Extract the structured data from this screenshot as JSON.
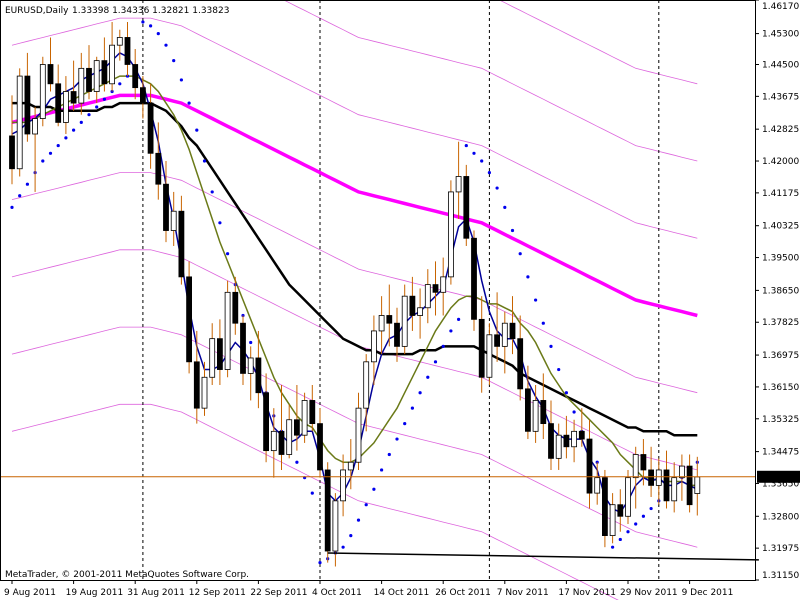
{
  "header": {
    "symbol": "EURUSD,Daily",
    "ohlc": "1.33398 1.34336 1.32821 1.33823"
  },
  "footer": {
    "copyright": "MetaTrader, © 2001-2011 MetaQuotes Software Corp."
  },
  "colors": {
    "bull": "#ffffff",
    "bear": "#000000",
    "wick": "#c86400",
    "fast_ma": "#000099",
    "mid_ma": "#6b7a18",
    "slow_ma": "#000000",
    "long_ma": "#ff00ff",
    "bands": "#dd66dd",
    "sar": "#0000ee",
    "bid_line": "#c86400",
    "support": "#000000"
  },
  "chart_data": {
    "type": "candlestick",
    "symbol": "EURUSD",
    "timeframe": "Daily",
    "ylim": [
      1.3115,
      1.4617
    ],
    "y_ticks": [
      "1.46170",
      "1.45300",
      "1.44500",
      "1.43675",
      "1.42825",
      "1.42000",
      "1.41175",
      "1.40325",
      "1.39500",
      "1.38650",
      "1.37825",
      "1.36975",
      "1.36150",
      "1.35325",
      "1.34475",
      "1.33650",
      "1.32800",
      "1.31975",
      "1.31150"
    ],
    "current_price": "1.33823",
    "x_ticks": [
      "9 Aug 2011",
      "19 Aug 2011",
      "31 Aug 2011",
      "12 Sep 2011",
      "22 Sep 2011",
      "4 Oct 2011",
      "14 Oct 2011",
      "26 Oct 2011",
      "7 Nov 2011",
      "17 Nov 2011",
      "29 Nov 2011",
      "9 Dec 2011"
    ],
    "x_tick_bar_index": [
      0,
      8,
      16,
      24,
      32,
      40,
      48,
      56,
      64,
      72,
      80,
      88
    ],
    "period_separators_bar_index": [
      17,
      40,
      62,
      84
    ],
    "support_line": {
      "from_bar": 41,
      "to_bar": 97,
      "from_price": 1.3185,
      "to_price": 1.3167
    },
    "candles": [
      {
        "o": 1.4265,
        "h": 1.437,
        "l": 1.414,
        "c": 1.418
      },
      {
        "o": 1.418,
        "h": 1.444,
        "l": 1.416,
        "c": 1.442
      },
      {
        "o": 1.442,
        "h": 1.448,
        "l": 1.425,
        "c": 1.427
      },
      {
        "o": 1.427,
        "h": 1.434,
        "l": 1.412,
        "c": 1.431
      },
      {
        "o": 1.431,
        "h": 1.447,
        "l": 1.429,
        "c": 1.445
      },
      {
        "o": 1.445,
        "h": 1.452,
        "l": 1.438,
        "c": 1.44
      },
      {
        "o": 1.44,
        "h": 1.445,
        "l": 1.429,
        "c": 1.43
      },
      {
        "o": 1.43,
        "h": 1.442,
        "l": 1.427,
        "c": 1.438
      },
      {
        "o": 1.438,
        "h": 1.446,
        "l": 1.433,
        "c": 1.435
      },
      {
        "o": 1.435,
        "h": 1.448,
        "l": 1.432,
        "c": 1.444
      },
      {
        "o": 1.444,
        "h": 1.45,
        "l": 1.436,
        "c": 1.438
      },
      {
        "o": 1.438,
        "h": 1.447,
        "l": 1.435,
        "c": 1.446
      },
      {
        "o": 1.446,
        "h": 1.452,
        "l": 1.438,
        "c": 1.44
      },
      {
        "o": 1.44,
        "h": 1.456,
        "l": 1.438,
        "c": 1.45
      },
      {
        "o": 1.45,
        "h": 1.454,
        "l": 1.446,
        "c": 1.452
      },
      {
        "o": 1.452,
        "h": 1.456,
        "l": 1.442,
        "c": 1.445
      },
      {
        "o": 1.445,
        "h": 1.449,
        "l": 1.436,
        "c": 1.439
      },
      {
        "o": 1.439,
        "h": 1.442,
        "l": 1.431,
        "c": 1.435
      },
      {
        "o": 1.435,
        "h": 1.44,
        "l": 1.418,
        "c": 1.422
      },
      {
        "o": 1.422,
        "h": 1.43,
        "l": 1.41,
        "c": 1.414
      },
      {
        "o": 1.414,
        "h": 1.42,
        "l": 1.399,
        "c": 1.402
      },
      {
        "o": 1.402,
        "h": 1.412,
        "l": 1.398,
        "c": 1.407
      },
      {
        "o": 1.407,
        "h": 1.411,
        "l": 1.388,
        "c": 1.39
      },
      {
        "o": 1.39,
        "h": 1.394,
        "l": 1.365,
        "c": 1.368
      },
      {
        "o": 1.368,
        "h": 1.376,
        "l": 1.352,
        "c": 1.356
      },
      {
        "o": 1.356,
        "h": 1.368,
        "l": 1.354,
        "c": 1.364
      },
      {
        "o": 1.364,
        "h": 1.378,
        "l": 1.362,
        "c": 1.374
      },
      {
        "o": 1.374,
        "h": 1.379,
        "l": 1.362,
        "c": 1.366
      },
      {
        "o": 1.366,
        "h": 1.389,
        "l": 1.364,
        "c": 1.386
      },
      {
        "o": 1.386,
        "h": 1.39,
        "l": 1.375,
        "c": 1.378
      },
      {
        "o": 1.378,
        "h": 1.38,
        "l": 1.362,
        "c": 1.365
      },
      {
        "o": 1.365,
        "h": 1.372,
        "l": 1.358,
        "c": 1.369
      },
      {
        "o": 1.369,
        "h": 1.376,
        "l": 1.356,
        "c": 1.36
      },
      {
        "o": 1.36,
        "h": 1.365,
        "l": 1.342,
        "c": 1.345
      },
      {
        "o": 1.345,
        "h": 1.356,
        "l": 1.338,
        "c": 1.35
      },
      {
        "o": 1.35,
        "h": 1.362,
        "l": 1.34,
        "c": 1.344
      },
      {
        "o": 1.344,
        "h": 1.357,
        "l": 1.343,
        "c": 1.353
      },
      {
        "o": 1.353,
        "h": 1.362,
        "l": 1.345,
        "c": 1.349
      },
      {
        "o": 1.349,
        "h": 1.36,
        "l": 1.347,
        "c": 1.358
      },
      {
        "o": 1.358,
        "h": 1.362,
        "l": 1.35,
        "c": 1.352
      },
      {
        "o": 1.352,
        "h": 1.356,
        "l": 1.338,
        "c": 1.34
      },
      {
        "o": 1.34,
        "h": 1.342,
        "l": 1.316,
        "c": 1.319
      },
      {
        "o": 1.319,
        "h": 1.334,
        "l": 1.315,
        "c": 1.332
      },
      {
        "o": 1.332,
        "h": 1.344,
        "l": 1.328,
        "c": 1.34
      },
      {
        "o": 1.34,
        "h": 1.348,
        "l": 1.335,
        "c": 1.342
      },
      {
        "o": 1.342,
        "h": 1.36,
        "l": 1.34,
        "c": 1.356
      },
      {
        "o": 1.356,
        "h": 1.37,
        "l": 1.35,
        "c": 1.368
      },
      {
        "o": 1.368,
        "h": 1.38,
        "l": 1.362,
        "c": 1.376
      },
      {
        "o": 1.376,
        "h": 1.385,
        "l": 1.37,
        "c": 1.38
      },
      {
        "o": 1.38,
        "h": 1.388,
        "l": 1.372,
        "c": 1.378
      },
      {
        "o": 1.378,
        "h": 1.382,
        "l": 1.368,
        "c": 1.372
      },
      {
        "o": 1.372,
        "h": 1.388,
        "l": 1.37,
        "c": 1.385
      },
      {
        "o": 1.385,
        "h": 1.39,
        "l": 1.376,
        "c": 1.38
      },
      {
        "o": 1.38,
        "h": 1.387,
        "l": 1.374,
        "c": 1.382
      },
      {
        "o": 1.382,
        "h": 1.392,
        "l": 1.378,
        "c": 1.388
      },
      {
        "o": 1.388,
        "h": 1.394,
        "l": 1.38,
        "c": 1.386
      },
      {
        "o": 1.386,
        "h": 1.395,
        "l": 1.38,
        "c": 1.39
      },
      {
        "o": 1.39,
        "h": 1.415,
        "l": 1.388,
        "c": 1.412
      },
      {
        "o": 1.412,
        "h": 1.425,
        "l": 1.405,
        "c": 1.416
      },
      {
        "o": 1.416,
        "h": 1.419,
        "l": 1.398,
        "c": 1.4
      },
      {
        "o": 1.4,
        "h": 1.402,
        "l": 1.376,
        "c": 1.379
      },
      {
        "o": 1.379,
        "h": 1.385,
        "l": 1.36,
        "c": 1.364
      },
      {
        "o": 1.364,
        "h": 1.378,
        "l": 1.362,
        "c": 1.375
      },
      {
        "o": 1.375,
        "h": 1.386,
        "l": 1.368,
        "c": 1.372
      },
      {
        "o": 1.372,
        "h": 1.381,
        "l": 1.365,
        "c": 1.378
      },
      {
        "o": 1.378,
        "h": 1.385,
        "l": 1.37,
        "c": 1.374
      },
      {
        "o": 1.374,
        "h": 1.38,
        "l": 1.358,
        "c": 1.361
      },
      {
        "o": 1.361,
        "h": 1.367,
        "l": 1.348,
        "c": 1.35
      },
      {
        "o": 1.35,
        "h": 1.362,
        "l": 1.347,
        "c": 1.358
      },
      {
        "o": 1.358,
        "h": 1.365,
        "l": 1.348,
        "c": 1.352
      },
      {
        "o": 1.352,
        "h": 1.358,
        "l": 1.34,
        "c": 1.343
      },
      {
        "o": 1.343,
        "h": 1.352,
        "l": 1.34,
        "c": 1.349
      },
      {
        "o": 1.349,
        "h": 1.354,
        "l": 1.343,
        "c": 1.346
      },
      {
        "o": 1.346,
        "h": 1.353,
        "l": 1.342,
        "c": 1.35
      },
      {
        "o": 1.35,
        "h": 1.356,
        "l": 1.346,
        "c": 1.348
      },
      {
        "o": 1.348,
        "h": 1.353,
        "l": 1.33,
        "c": 1.334
      },
      {
        "o": 1.334,
        "h": 1.342,
        "l": 1.331,
        "c": 1.338
      },
      {
        "o": 1.338,
        "h": 1.34,
        "l": 1.32,
        "c": 1.323
      },
      {
        "o": 1.323,
        "h": 1.334,
        "l": 1.321,
        "c": 1.331
      },
      {
        "o": 1.331,
        "h": 1.335,
        "l": 1.324,
        "c": 1.328
      },
      {
        "o": 1.328,
        "h": 1.34,
        "l": 1.326,
        "c": 1.338
      },
      {
        "o": 1.338,
        "h": 1.346,
        "l": 1.33,
        "c": 1.344
      },
      {
        "o": 1.344,
        "h": 1.348,
        "l": 1.336,
        "c": 1.34
      },
      {
        "o": 1.34,
        "h": 1.346,
        "l": 1.333,
        "c": 1.336
      },
      {
        "o": 1.336,
        "h": 1.343,
        "l": 1.331,
        "c": 1.34
      },
      {
        "o": 1.34,
        "h": 1.345,
        "l": 1.33,
        "c": 1.332
      },
      {
        "o": 1.332,
        "h": 1.342,
        "l": 1.329,
        "c": 1.338
      },
      {
        "o": 1.338,
        "h": 1.344,
        "l": 1.332,
        "c": 1.341
      },
      {
        "o": 1.341,
        "h": 1.344,
        "l": 1.329,
        "c": 1.331
      },
      {
        "o": 1.3339,
        "h": 1.3434,
        "l": 1.3282,
        "c": 1.3382
      }
    ],
    "ma_fast": [
      1.427,
      1.428,
      1.43,
      1.431,
      1.433,
      1.436,
      1.437,
      1.438,
      1.439,
      1.441,
      1.442,
      1.443,
      1.444,
      1.446,
      1.448,
      1.447,
      1.444,
      1.44,
      1.433,
      1.425,
      1.414,
      1.405,
      1.394,
      1.382,
      1.372,
      1.366,
      1.366,
      1.367,
      1.37,
      1.373,
      1.371,
      1.368,
      1.364,
      1.357,
      1.351,
      1.349,
      1.347,
      1.348,
      1.35,
      1.35,
      1.343,
      1.334,
      1.332,
      1.334,
      1.338,
      1.345,
      1.354,
      1.363,
      1.37,
      1.374,
      1.375,
      1.378,
      1.38,
      1.381,
      1.383,
      1.385,
      1.387,
      1.395,
      1.403,
      1.405,
      1.399,
      1.389,
      1.381,
      1.376,
      1.374,
      1.374,
      1.37,
      1.363,
      1.359,
      1.356,
      1.351,
      1.349,
      1.348,
      1.348,
      1.348,
      1.343,
      1.34,
      1.333,
      1.33,
      1.329,
      1.332,
      1.336,
      1.338,
      1.337,
      1.338,
      1.336,
      1.336,
      1.337,
      1.336,
      1.335
    ],
    "ma_mid": [
      1.43,
      1.43,
      1.43,
      1.431,
      1.432,
      1.433,
      1.434,
      1.435,
      1.436,
      1.437,
      1.438,
      1.439,
      1.44,
      1.441,
      1.442,
      1.442,
      1.442,
      1.441,
      1.44,
      1.438,
      1.435,
      1.432,
      1.428,
      1.423,
      1.417,
      1.411,
      1.405,
      1.399,
      1.394,
      1.389,
      1.384,
      1.379,
      1.374,
      1.369,
      1.364,
      1.36,
      1.357,
      1.354,
      1.352,
      1.351,
      1.348,
      1.345,
      1.343,
      1.342,
      1.342,
      1.343,
      1.345,
      1.347,
      1.35,
      1.353,
      1.356,
      1.36,
      1.364,
      1.368,
      1.372,
      1.376,
      1.379,
      1.382,
      1.384,
      1.385,
      1.385,
      1.384,
      1.383,
      1.383,
      1.382,
      1.381,
      1.378,
      1.376,
      1.373,
      1.369,
      1.365,
      1.362,
      1.359,
      1.357,
      1.355,
      1.353,
      1.351,
      1.349,
      1.347,
      1.344,
      1.342,
      1.34,
      1.338,
      1.338,
      1.337,
      1.337,
      1.337,
      1.337,
      1.336,
      1.336
    ],
    "ma_slow": [
      1.435,
      1.435,
      1.435,
      1.434,
      1.434,
      1.434,
      1.433,
      1.433,
      1.433,
      1.433,
      1.433,
      1.433,
      1.434,
      1.434,
      1.435,
      1.435,
      1.435,
      1.435,
      1.435,
      1.434,
      1.433,
      1.431,
      1.429,
      1.426,
      1.424,
      1.421,
      1.418,
      1.415,
      1.412,
      1.409,
      1.406,
      1.403,
      1.4,
      1.397,
      1.394,
      1.391,
      1.388,
      1.386,
      1.384,
      1.382,
      1.38,
      1.378,
      1.376,
      1.374,
      1.373,
      1.372,
      1.371,
      1.371,
      1.37,
      1.37,
      1.37,
      1.37,
      1.37,
      1.371,
      1.371,
      1.371,
      1.372,
      1.372,
      1.372,
      1.372,
      1.372,
      1.371,
      1.37,
      1.369,
      1.368,
      1.367,
      1.365,
      1.364,
      1.363,
      1.362,
      1.361,
      1.36,
      1.359,
      1.358,
      1.357,
      1.356,
      1.355,
      1.354,
      1.353,
      1.352,
      1.351,
      1.351,
      1.35,
      1.35,
      1.35,
      1.35,
      1.349,
      1.349,
      1.349,
      1.349
    ],
    "ma_long": [
      1.43,
      1.4305,
      1.431,
      1.4315,
      1.432,
      1.4325,
      1.433,
      1.4335,
      1.434,
      1.4345,
      1.435,
      1.4355,
      1.436,
      1.4365,
      1.437,
      1.437,
      1.437,
      1.437,
      1.437,
      1.4365,
      1.436,
      1.4355,
      1.435,
      1.434,
      1.433,
      1.432,
      1.431,
      1.43,
      1.429,
      1.428,
      1.427,
      1.426,
      1.425,
      1.424,
      1.423,
      1.422,
      1.421,
      1.42,
      1.419,
      1.418,
      1.417,
      1.416,
      1.415,
      1.414,
      1.413,
      1.412,
      1.4115,
      1.411,
      1.4105,
      1.41,
      1.4095,
      1.409,
      1.4085,
      1.408,
      1.4075,
      1.407,
      1.4065,
      1.406,
      1.4055,
      1.405,
      1.4045,
      1.404,
      1.403,
      1.402,
      1.401,
      1.4,
      1.399,
      1.398,
      1.397,
      1.396,
      1.395,
      1.394,
      1.393,
      1.392,
      1.391,
      1.39,
      1.389,
      1.388,
      1.387,
      1.386,
      1.385,
      1.384,
      1.3835,
      1.383,
      1.3825,
      1.382,
      1.3815,
      1.381,
      1.3805,
      1.38
    ],
    "band_offsets": [
      -0.08,
      -0.06,
      -0.04,
      -0.02,
      0.0,
      0.02,
      0.04,
      0.06
    ],
    "sar": [
      1.408,
      1.411,
      1.414,
      1.417,
      1.42,
      1.422,
      1.424,
      1.426,
      1.428,
      1.43,
      1.432,
      1.434,
      1.436,
      1.438,
      1.44,
      1.442,
      1.444,
      1.456,
      1.455,
      1.453,
      1.45,
      1.446,
      1.441,
      1.435,
      1.428,
      1.42,
      1.412,
      1.404,
      1.396,
      1.388,
      1.38,
      1.373,
      1.366,
      1.36,
      1.354,
      1.35,
      1.346,
      1.342,
      1.338,
      1.334,
      1.316,
      1.317,
      1.3185,
      1.32,
      1.323,
      1.327,
      1.331,
      1.335,
      1.34,
      1.344,
      1.348,
      1.352,
      1.356,
      1.36,
      1.364,
      1.368,
      1.372,
      1.376,
      1.379,
      1.424,
      1.422,
      1.42,
      1.417,
      1.413,
      1.408,
      1.402,
      1.396,
      1.39,
      1.384,
      1.378,
      1.372,
      1.366,
      1.36,
      1.355,
      1.35,
      1.346,
      1.342,
      1.338,
      1.32,
      1.322,
      1.324,
      1.326,
      1.328,
      1.33,
      1.332,
      1.334,
      1.336,
      1.338,
      1.34,
      1.342
    ]
  }
}
